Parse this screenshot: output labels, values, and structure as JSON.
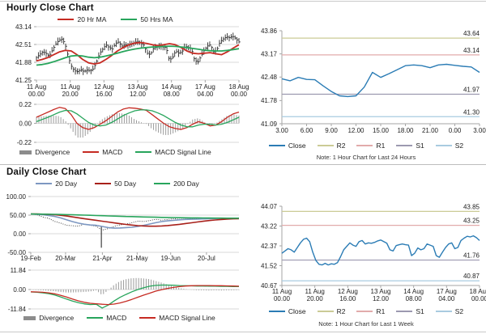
{
  "sections": {
    "hourly": {
      "title": "Hourly Close Chart"
    },
    "daily": {
      "title": "Daily Close Chart"
    }
  },
  "colors": {
    "red": "#c62b23",
    "dark_red": "#a8201a",
    "green": "#28a55c",
    "close_blue": "#2b7cb5",
    "ma20_blue": "#7d97c1",
    "r2": "#cbcb96",
    "r1": "#e2abab",
    "s1": "#9c99b0",
    "s2": "#a9cbe0",
    "divergence": "#9b9b9b",
    "grid": "#d9d9d9",
    "axis": "#a6a6a6",
    "candle": "#2b2b2b"
  },
  "chart_data": {
    "hourly_price": {
      "type": "ohlc+line",
      "title": "Hourly Close Chart",
      "legend": [
        {
          "label": "20 Hr MA",
          "color": "#c62b23"
        },
        {
          "label": "50 Hrs MA",
          "color": "#28a55c"
        }
      ],
      "y_ticks": [
        "43.14",
        "42.51",
        "41.88",
        "41.25"
      ],
      "ylim": [
        41.25,
        43.14
      ],
      "x_ticks": [
        [
          "11 Aug",
          "00.00"
        ],
        [
          "11 Aug",
          "20.00"
        ],
        [
          "12 Aug",
          "16.00"
        ],
        [
          "13 Aug",
          "12.00"
        ],
        [
          "14 Aug",
          "08.00"
        ],
        [
          "17 Aug",
          "04.00"
        ],
        [
          "18 Aug",
          "00.00"
        ]
      ],
      "close": [
        42.05,
        42.15,
        42.25,
        42.2,
        42.1,
        42.3,
        42.5,
        42.65,
        42.7,
        42.55,
        42.1,
        41.75,
        41.58,
        41.55,
        41.62,
        41.55,
        41.6,
        41.58,
        41.65,
        41.9,
        42.2,
        42.35,
        42.5,
        42.4,
        42.35,
        42.55,
        42.6,
        42.45,
        42.5,
        42.48,
        42.52,
        42.58,
        42.62,
        42.55,
        42.48,
        42.2,
        42.15,
        42.38,
        42.42,
        42.45,
        42.42,
        42.4,
        41.95,
        42.05,
        42.28,
        42.2,
        42.25,
        42.45,
        42.4,
        42.35,
        41.95,
        41.88,
        42.1,
        42.3,
        42.45,
        42.5,
        42.25,
        42.3,
        42.6,
        42.7,
        42.78,
        42.75,
        42.8,
        42.72,
        42.6
      ],
      "ma20": [
        41.93,
        41.98,
        42.05,
        42.15,
        42.25,
        42.3,
        42.28,
        42.15,
        41.98,
        41.86,
        41.82,
        41.86,
        41.98,
        42.12,
        42.28,
        42.4,
        42.5,
        42.56,
        42.58,
        42.55,
        42.5,
        42.47,
        42.5,
        42.54,
        42.5,
        42.4,
        42.28,
        42.2,
        42.18,
        42.2,
        42.22,
        42.18,
        42.15,
        42.25,
        42.38,
        42.5
      ],
      "ma50": [
        41.78,
        41.8,
        41.84,
        41.9,
        41.97,
        42.04,
        42.1,
        42.12,
        42.1,
        42.06,
        42.04,
        42.06,
        42.1,
        42.15,
        42.2,
        42.26,
        42.31,
        42.35,
        42.38,
        42.4,
        42.42,
        42.43,
        42.44,
        42.45,
        42.44,
        42.42,
        42.4,
        42.37,
        42.34,
        42.31,
        42.29,
        42.28,
        42.28,
        42.3,
        42.33,
        42.36
      ]
    },
    "hourly_macd": {
      "type": "bar+line",
      "legend": [
        {
          "label": "Divergence",
          "color": "#8c8c8c",
          "bar": true
        },
        {
          "label": "MACD",
          "color": "#c62b23"
        },
        {
          "label": "MACD Signal Line",
          "color": "#28a55c"
        }
      ],
      "y_ticks": [
        "0.22",
        "0.00",
        "-0.22"
      ],
      "ylim": [
        -0.22,
        0.22
      ],
      "macd": [
        0.07,
        0.1,
        0.13,
        0.16,
        0.185,
        0.17,
        0.1,
        0,
        -0.05,
        -0.07,
        -0.05,
        -0.01,
        0.03,
        0.08,
        0.13,
        0.165,
        0.18,
        0.175,
        0.165,
        0.15,
        0.1,
        0.05,
        0,
        -0.04,
        -0.06,
        -0.07,
        -0.05,
        -0.01,
        0.02,
        0,
        -0.03,
        -0.02,
        0.02,
        0.07,
        0.11,
        0.13
      ],
      "signal": [
        0.02,
        0.045,
        0.07,
        0.1,
        0.13,
        0.15,
        0.145,
        0.11,
        0.06,
        0.01,
        -0.02,
        -0.03,
        -0.02,
        0.01,
        0.05,
        0.09,
        0.12,
        0.145,
        0.155,
        0.155,
        0.145,
        0.12,
        0.09,
        0.05,
        0.01,
        -0.02,
        -0.04,
        -0.04,
        -0.02,
        -0.01,
        -0.01,
        -0.02,
        -0.01,
        0.01,
        0.04,
        0.07
      ]
    },
    "hourly_pivot": {
      "type": "line",
      "legend": [
        {
          "label": "Close",
          "color": "#2b7cb5"
        },
        {
          "label": "R2",
          "color": "#cbcb96"
        },
        {
          "label": "R1",
          "color": "#e2abab"
        },
        {
          "label": "S1",
          "color": "#9c99b0"
        },
        {
          "label": "S2",
          "color": "#a9cbe0"
        }
      ],
      "note": "Note: 1 Hour Chart for Last 24 Hours",
      "y_ticks": [
        "43.86",
        "43.17",
        "42.48",
        "41.78",
        "41.09"
      ],
      "ylim": [
        41.09,
        43.86
      ],
      "x_ticks": [
        "3.00",
        "6.00",
        "9.00",
        "12.00",
        "15.00",
        "18.00",
        "21.00",
        "0.00",
        "3.00"
      ],
      "pivots": [
        {
          "label": "R2",
          "value": 43.64,
          "text": "43.64",
          "color": "#cbcb96"
        },
        {
          "label": "R1",
          "value": 43.14,
          "text": "43.14",
          "color": "#e2abab"
        },
        {
          "label": "S1",
          "value": 41.97,
          "text": "41.97",
          "color": "#9c99b0"
        },
        {
          "label": "S2",
          "value": 41.3,
          "text": "41.30",
          "color": "#a9cbe0"
        }
      ],
      "close": [
        42.43,
        42.37,
        42.47,
        42.41,
        42.4,
        42.22,
        42.05,
        41.92,
        41.9,
        41.92,
        42.18,
        42.62,
        42.47,
        42.58,
        42.7,
        42.82,
        42.84,
        42.82,
        42.76,
        42.84,
        42.86,
        42.83,
        42.8,
        42.78,
        42.62
      ]
    },
    "daily_price": {
      "type": "line",
      "title": "Daily Close Chart",
      "legend": [
        {
          "label": "20 Day",
          "color": "#7d97c1"
        },
        {
          "label": "50 Day",
          "color": "#a8201a"
        },
        {
          "label": "200 Day",
          "color": "#28a55c"
        }
      ],
      "y_ticks": [
        "100.00",
        "50.00",
        "0.00",
        "-50.00"
      ],
      "ylim": [
        -50,
        100
      ],
      "x_ticks": [
        "19-Feb",
        "20-Mar",
        "21-Apr",
        "21-May",
        "19-Jun",
        "20-Jul"
      ],
      "x_tick_pos": [
        0,
        0.167,
        0.344,
        0.511,
        0.672,
        0.844
      ],
      "price": [
        53.5,
        51,
        44.8,
        41.3,
        33,
        28.7,
        22.6,
        21.5,
        20.3,
        26.1,
        22.8,
        19.9,
        10,
        13.8,
        19.7,
        23.6,
        25.8,
        29.4,
        33.9,
        32.8,
        35.4,
        39,
        36.3,
        38.4,
        40.5,
        38.7,
        39.8,
        40.6,
        40.6,
        40.8,
        41.9,
        41.1,
        40.3,
        42.2,
        41.9,
        42.9
      ],
      "spike": {
        "t": 0.339,
        "low": -37.63,
        "top": 20
      },
      "ma20": [
        52.8,
        52.2,
        51,
        49,
        46.5,
        42.5,
        37.5,
        32.5,
        28.5,
        25.5,
        23.5,
        22.5,
        19.5,
        16.5,
        15,
        15.5,
        16.5,
        17.5,
        19.5,
        22.5,
        26,
        29.5,
        32.5,
        34.5,
        36,
        37.5,
        38.5,
        39,
        39.3,
        39.8,
        40.3,
        40.8,
        41,
        41.2,
        41.4,
        41.8
      ],
      "ma50": [
        53.2,
        53,
        52.6,
        52,
        51,
        49.5,
        47.5,
        45.2,
        42.8,
        40.5,
        38.2,
        36,
        33.8,
        31.5,
        29.2,
        27,
        25,
        23.2,
        21.8,
        20.8,
        20.3,
        20.2,
        20.8,
        22,
        23.5,
        25.3,
        27.3,
        29.4,
        31.5,
        33.5,
        35.4,
        37,
        38.3,
        39.3,
        40,
        40.5
      ],
      "ma200": [
        53,
        52.8,
        52.6,
        52.4,
        52.1,
        51.8,
        51.4,
        51,
        50.5,
        50,
        49.5,
        49,
        48.4,
        47.9,
        47.4,
        46.9,
        46.4,
        46,
        45.5,
        45.1,
        44.7,
        44.3,
        44,
        43.7,
        43.4,
        43.1,
        42.9,
        42.7,
        42.5,
        42.3,
        42.2,
        42,
        41.9,
        41.8,
        41.75,
        41.7
      ]
    },
    "daily_macd": {
      "type": "bar+line",
      "legend": [
        {
          "label": "Divergence",
          "color": "#8c8c8c",
          "bar": true
        },
        {
          "label": "MACD",
          "color": "#28a55c"
        },
        {
          "label": "MACD Signal Line",
          "color": "#c62b23"
        }
      ],
      "y_ticks": [
        "11.84",
        "0.00",
        "-11.84"
      ],
      "ylim": [
        -11.84,
        11.84
      ],
      "macd": [
        -1.5,
        -1.7,
        -2,
        -2.5,
        -3.3,
        -4.5,
        -5.8,
        -7,
        -8,
        -8.8,
        -9.2,
        -9,
        -11.3,
        -9.5,
        -7,
        -4.8,
        -3,
        -1.4,
        0,
        1.1,
        2,
        2.5,
        2.7,
        2.7,
        2.6,
        2.4,
        2.3,
        2.2,
        2.1,
        2.1,
        2,
        2,
        1.9,
        1.9,
        1.8,
        1.8
      ],
      "signal": [
        -1.4,
        -1.5,
        -1.7,
        -2,
        -2.6,
        -3.5,
        -4.6,
        -5.8,
        -6.9,
        -7.8,
        -8.4,
        -8.7,
        -9,
        -9.2,
        -8.9,
        -8.2,
        -7.2,
        -6,
        -4.7,
        -3.4,
        -2.2,
        -1,
        -0.1,
        0.7,
        1.3,
        1.8,
        2.1,
        2.3,
        2.4,
        2.4,
        2.4,
        2.3,
        2.3,
        2.2,
        2.1,
        2
      ]
    },
    "weekly_pivot": {
      "type": "line",
      "legend": [
        {
          "label": "Close",
          "color": "#2b7cb5"
        },
        {
          "label": "R2",
          "color": "#cbcb96"
        },
        {
          "label": "R1",
          "color": "#e2abab"
        },
        {
          "label": "S1",
          "color": "#9c99b0"
        },
        {
          "label": "S2",
          "color": "#a9cbe0"
        }
      ],
      "note": "Note: 1 Hour Chart for Last 1 Week",
      "y_ticks": [
        "44.07",
        "43.22",
        "42.37",
        "41.52",
        "40.67"
      ],
      "ylim": [
        40.67,
        44.07
      ],
      "x_ticks": [
        [
          "11 Aug",
          "00.00"
        ],
        [
          "11 Aug",
          "20.00"
        ],
        [
          "12 Aug",
          "16.00"
        ],
        [
          "13 Aug",
          "12.00"
        ],
        [
          "14 Aug",
          "08.00"
        ],
        [
          "17 Aug",
          "04.00"
        ],
        [
          "18 Aug",
          "00.00"
        ]
      ],
      "pivots": [
        {
          "label": "R2",
          "value": 43.85,
          "text": "43.85",
          "color": "#cbcb96"
        },
        {
          "label": "R1",
          "value": 43.25,
          "text": "43.25",
          "color": "#e2abab"
        },
        {
          "label": "S1",
          "value": 41.76,
          "text": "41.76",
          "color": "#9c99b0"
        },
        {
          "label": "S2",
          "value": 40.87,
          "text": "40.87",
          "color": "#a9cbe0"
        }
      ],
      "close": [
        42.05,
        42.15,
        42.25,
        42.2,
        42.1,
        42.3,
        42.5,
        42.65,
        42.7,
        42.55,
        42.1,
        41.75,
        41.58,
        41.55,
        41.62,
        41.55,
        41.6,
        41.58,
        41.65,
        41.9,
        42.2,
        42.35,
        42.5,
        42.4,
        42.35,
        42.55,
        42.6,
        42.45,
        42.5,
        42.48,
        42.52,
        42.58,
        42.62,
        42.55,
        42.48,
        42.2,
        42.15,
        42.38,
        42.42,
        42.45,
        42.42,
        42.4,
        41.95,
        42.05,
        42.28,
        42.2,
        42.25,
        42.45,
        42.4,
        42.35,
        41.95,
        41.88,
        42.1,
        42.3,
        42.45,
        42.5,
        42.25,
        42.3,
        42.6,
        42.7,
        42.78,
        42.75,
        42.8,
        42.72,
        42.6
      ]
    }
  }
}
